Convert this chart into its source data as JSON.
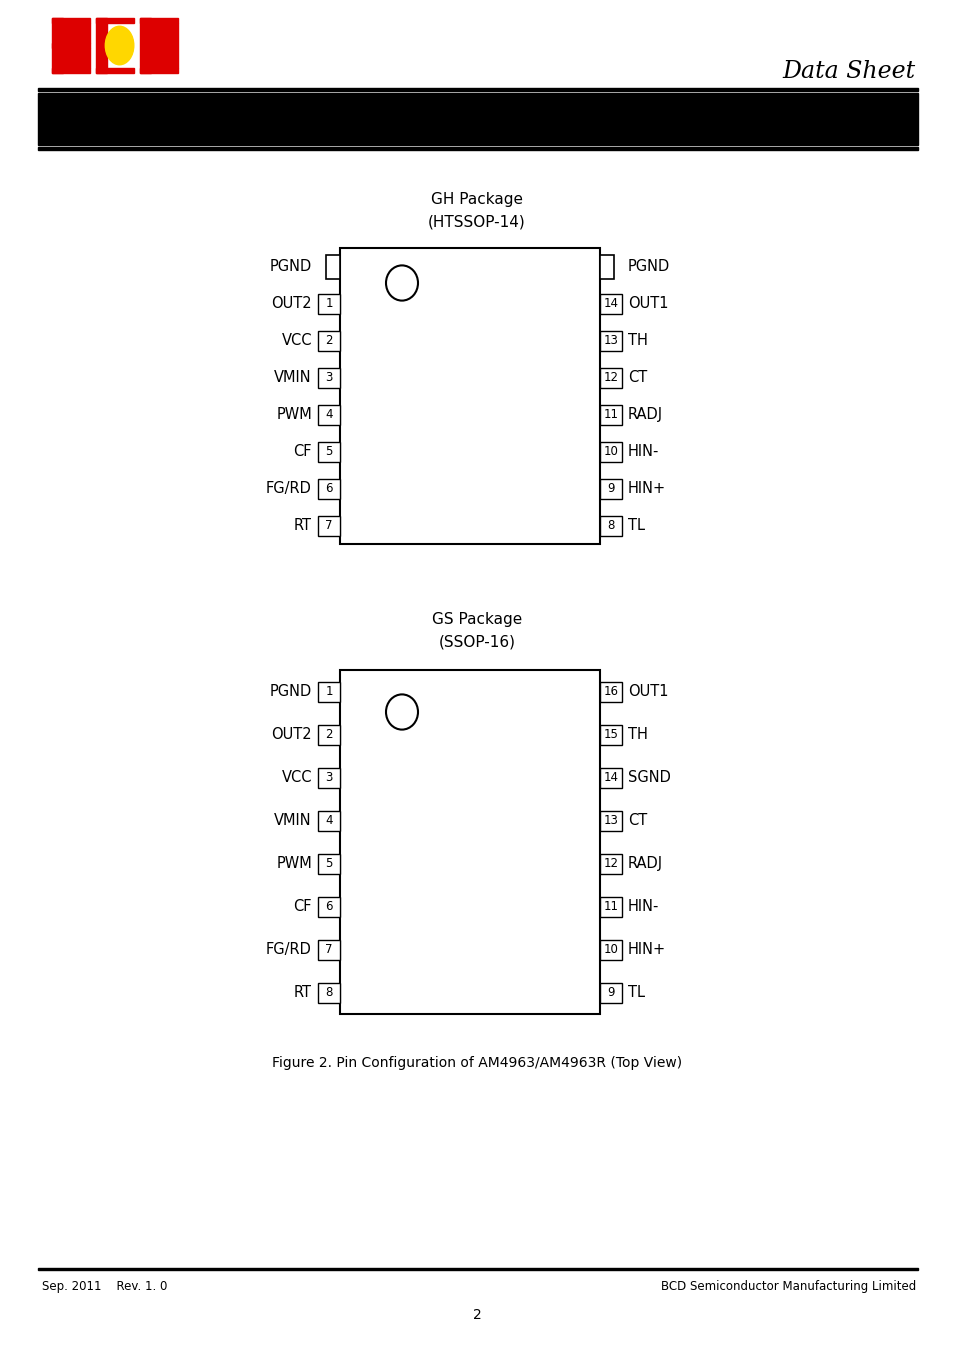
{
  "title": "Data Sheet",
  "gh_package_title": "GH Package\n(HTSSOP-14)",
  "gs_package_title": "GS Package\n(SSOP-16)",
  "gh_left_pins": [
    "PGND",
    "OUT2",
    "VCC",
    "VMIN",
    "PWM",
    "CF",
    "FG/RD",
    "RT"
  ],
  "gh_left_nums": [
    "",
    "1",
    "2",
    "3",
    "4",
    "5",
    "6",
    "7"
  ],
  "gh_right_pins": [
    "PGND",
    "OUT1",
    "TH",
    "CT",
    "RADJ",
    "HIN-",
    "HIN+",
    "TL"
  ],
  "gh_right_nums": [
    "",
    "14",
    "13",
    "12",
    "11",
    "10",
    "9",
    "8"
  ],
  "gs_left_pins": [
    "PGND",
    "OUT2",
    "VCC",
    "VMIN",
    "PWM",
    "CF",
    "FG/RD",
    "RT"
  ],
  "gs_left_nums": [
    "1",
    "2",
    "3",
    "4",
    "5",
    "6",
    "7",
    "8"
  ],
  "gs_right_pins": [
    "OUT1",
    "TH",
    "SGND",
    "CT",
    "RADJ",
    "HIN-",
    "HIN+",
    "TL"
  ],
  "gs_right_nums": [
    "16",
    "15",
    "14",
    "13",
    "12",
    "11",
    "10",
    "9"
  ],
  "figure_caption": "Figure 2. Pin Configuration of AM4963/AM4963R (Top View)",
  "footer_left": "Sep. 2011    Rev. 1. 0",
  "footer_right": "BCD Semiconductor Manufacturing Limited",
  "footer_page": "2"
}
